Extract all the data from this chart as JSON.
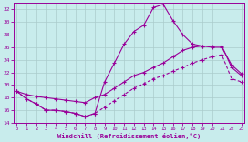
{
  "xlabel": "Windchill (Refroidissement éolien,°C)",
  "bg_color": "#c8ecec",
  "line_color": "#990099",
  "grid_color": "#aacccc",
  "xmin": 0,
  "xmax": 23,
  "ymin": 14,
  "ymax": 33,
  "yticks": [
    14,
    16,
    18,
    20,
    22,
    24,
    26,
    28,
    30,
    32
  ],
  "xticks": [
    0,
    1,
    2,
    3,
    4,
    5,
    6,
    7,
    8,
    9,
    10,
    11,
    12,
    13,
    14,
    15,
    16,
    17,
    18,
    19,
    20,
    21,
    22,
    23
  ],
  "line_main_x": [
    0,
    1,
    2,
    3,
    4,
    5,
    6,
    7,
    8,
    9,
    10,
    11,
    12,
    13,
    14,
    15,
    16,
    17,
    18,
    19,
    20,
    21,
    22,
    23
  ],
  "line_main_y": [
    19.0,
    17.8,
    17.0,
    16.0,
    16.0,
    15.8,
    15.5,
    15.0,
    15.5,
    20.5,
    23.5,
    26.5,
    28.5,
    29.5,
    32.3,
    32.8,
    30.2,
    28.0,
    26.5,
    26.2,
    26.0,
    26.0,
    23.2,
    21.8
  ],
  "line_upper_x": [
    0,
    1,
    2,
    3,
    4,
    5,
    6,
    7,
    8,
    9,
    10,
    11,
    12,
    13,
    14,
    15,
    16,
    17,
    18,
    19,
    20,
    21,
    22,
    23
  ],
  "line_upper_y": [
    19.0,
    18.5,
    18.2,
    18.0,
    17.8,
    17.6,
    17.4,
    17.2,
    18.0,
    18.5,
    19.5,
    20.5,
    21.5,
    22.0,
    22.8,
    23.5,
    24.5,
    25.5,
    26.0,
    26.2,
    26.2,
    26.2,
    22.8,
    21.5
  ],
  "line_lower_x": [
    0,
    1,
    2,
    3,
    4,
    5,
    6,
    7,
    8,
    9,
    10,
    11,
    12,
    13,
    14,
    15,
    16,
    17,
    18,
    19,
    20,
    21,
    22,
    23
  ],
  "line_lower_y": [
    19.0,
    17.8,
    17.0,
    16.0,
    16.0,
    15.8,
    15.5,
    15.0,
    15.5,
    16.5,
    17.5,
    18.5,
    19.5,
    20.2,
    21.0,
    21.5,
    22.2,
    22.8,
    23.5,
    24.0,
    24.5,
    24.8,
    21.0,
    20.5
  ]
}
